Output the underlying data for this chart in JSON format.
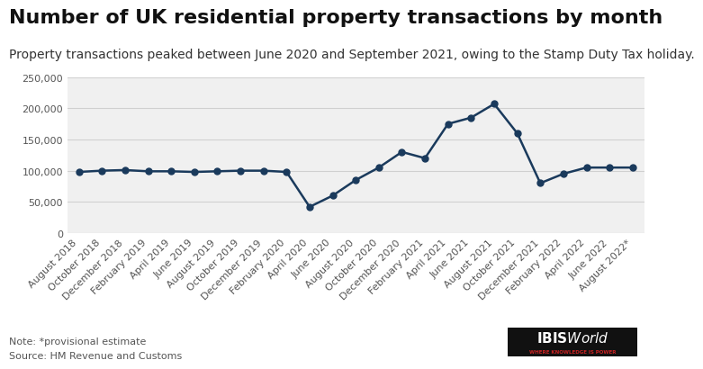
{
  "title": "Number of UK residential property transactions by month",
  "subtitle": "Property transactions peaked between June 2020 and September 2021, owing to the Stamp Duty Tax holiday.",
  "note": "Note: *provisional estimate",
  "source": "Source: HM Revenue and Customs",
  "background_color": "#ffffff",
  "line_color": "#1a3a5c",
  "marker_color": "#1a3a5c",
  "grid_color": "#d0d0d0",
  "labels": [
    "August 2018",
    "October 2018",
    "December 2018",
    "February 2019",
    "April 2019",
    "June 2019",
    "August 2019",
    "October 2019",
    "December 2019",
    "February 2020",
    "April 2020",
    "June 2020",
    "August 2020",
    "October 2020",
    "December 2020",
    "February 2021",
    "April 2021",
    "June 2021",
    "August 2021",
    "October 2021",
    "December 2021",
    "February 2022",
    "April 2022",
    "June 2022",
    "August 2022*"
  ],
  "values": [
    98000,
    100000,
    101000,
    99000,
    99000,
    98000,
    99000,
    100000,
    100000,
    98000,
    42000,
    60000,
    85000,
    105000,
    130000,
    120000,
    175000,
    185000,
    207000,
    160000,
    80000,
    95000,
    105000,
    105000,
    105000
  ],
  "ylim": [
    0,
    250000
  ],
  "yticks": [
    0,
    50000,
    100000,
    150000,
    200000,
    250000
  ],
  "title_fontsize": 16,
  "subtitle_fontsize": 10,
  "tick_fontsize": 8,
  "note_fontsize": 8
}
